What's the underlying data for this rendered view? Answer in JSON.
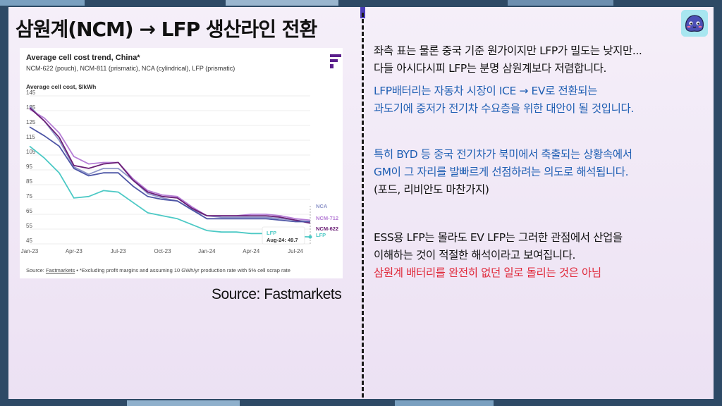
{
  "slide": {
    "title": "삼원계(NCM) → LFP 생산라인 전환",
    "source_label": "Source: Fastmarkets"
  },
  "chart_card": {
    "title": "Average cell cost trend, China*",
    "subtitle": "NCM-622 (pouch), NCM-811 (prismatic), NCA (cylindrical), LFP (prismatic)",
    "footnote_source": "Source:",
    "footnote_link": "Fastmarkets",
    "footnote_rest": " • *Excluding profit margins and assuming 10 GWh/yr production rate with 5% cell scrap rate",
    "tooltip_series": "LFP",
    "tooltip_value": "Aug-24: 49.7"
  },
  "chart_data": {
    "type": "line",
    "title": "Average cell cost trend, China*",
    "subtitle": "NCM-622 (pouch), NCM-811 (prismatic), NCA (cylindrical), LFP (prismatic)",
    "ylabel": "Average cell cost, $/kWh",
    "xlabel": "",
    "ylim": [
      45,
      145
    ],
    "yticks": [
      45,
      55,
      65,
      75,
      85,
      95,
      105,
      115,
      125,
      135,
      145
    ],
    "xtick_labels": [
      "Jan-23",
      "Apr-23",
      "Jul-23",
      "Oct-23",
      "Jan-24",
      "Apr-24",
      "Jul-24"
    ],
    "xtick_index": [
      0,
      3,
      6,
      9,
      12,
      15,
      18
    ],
    "x": [
      "Jan-23",
      "Feb-23",
      "Mar-23",
      "Apr-23",
      "May-23",
      "Jun-23",
      "Jul-23",
      "Aug-23",
      "Sep-23",
      "Oct-23",
      "Nov-23",
      "Dec-23",
      "Jan-24",
      "Feb-24",
      "Mar-24",
      "Apr-24",
      "May-24",
      "Jun-24",
      "Jul-24",
      "Aug-24"
    ],
    "grid": true,
    "legend": "right end labels",
    "series": [
      {
        "name": "NCA",
        "color": "#8e95c9",
        "values": [
          138,
          128,
          115,
          97,
          92,
          96,
          96,
          88,
          79,
          76,
          74,
          68,
          64,
          63,
          63,
          63,
          63,
          62,
          61,
          60
        ]
      },
      {
        "name": "NCM-712",
        "color": "#b67ed6",
        "values": [
          136,
          130,
          120,
          104,
          99,
          100,
          100,
          89,
          81,
          78,
          77,
          70,
          64,
          64,
          64,
          65,
          65,
          64,
          62,
          61
        ]
      },
      {
        "name": "NCM-622",
        "color": "#6a1e75",
        "values": [
          137,
          128,
          117,
          98,
          96,
          99,
          100,
          88,
          80,
          77,
          76,
          69,
          64,
          64,
          64,
          64,
          64,
          63,
          61,
          59
        ]
      },
      {
        "name": "",
        "color": "#4e56a6",
        "values": [
          124,
          118,
          111,
          96,
          91,
          93,
          93,
          84,
          77,
          75,
          74,
          68,
          62,
          62,
          62,
          62,
          62,
          61,
          60,
          60
        ]
      },
      {
        "name": "LFP",
        "color": "#4cc9c5",
        "values": [
          111,
          103,
          93,
          76,
          77,
          81,
          80,
          73,
          66,
          64,
          62,
          58,
          54,
          53,
          53,
          52,
          52,
          51,
          50,
          49.7
        ]
      }
    ]
  },
  "commentary": {
    "p1": [
      "좌측 표는 물론 중국 기준 원가이지만 LFP가 밀도는 낮지만...",
      "다들 아시다시피 LFP는 분명 삼원계보다 저렴합니다."
    ],
    "p2": [
      "LFP배터리는 자동차 시장이 ICE → EV로 전환되는",
      "과도기에 중저가 전기차 수요층을 위한 대안이 될 것입니다."
    ],
    "p3": [
      "특히 BYD 등 중국 전기차가 북미에서 축출되는 상황속에서",
      "GM이 그 자리를 발빠르게 선점하려는 의도로 해석됩니다."
    ],
    "p3_note": "(포드, 리비안도 마찬가지)",
    "p4": [
      "ESS용 LFP는 몰라도 EV LFP는 그러한 관점에서 산업을",
      "이해하는 것이 적절한 해석이라고 보여집니다."
    ],
    "p5": "삼원계 배터리를 완전히 없던 일로 돌리는 것은 아님"
  },
  "colors": {
    "frame": "#2e4a66",
    "background": "#f2ebf7",
    "blue_text": "#1f5fb3",
    "red_text": "#e0293a",
    "logo": "#5b1f8c"
  },
  "icons": {
    "avatar": "blob-mascot-icon",
    "brand_logo": "fastmarkets-logo-icon"
  }
}
